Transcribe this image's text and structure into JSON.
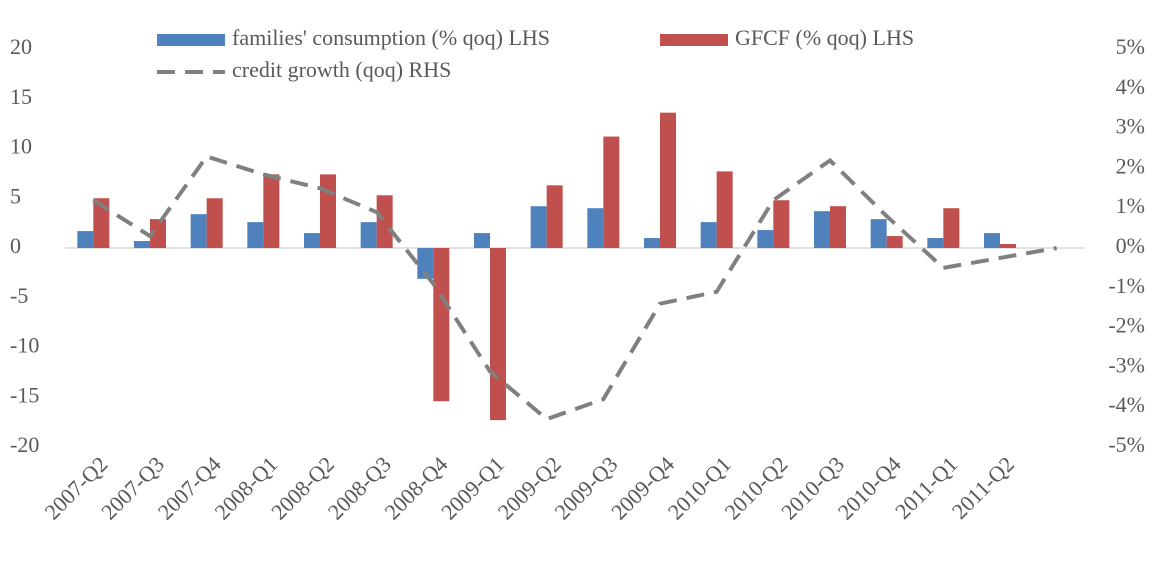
{
  "chart_data": {
    "type": "bar-line",
    "categories": [
      "2007-Q2",
      "2007-Q3",
      "2007-Q4",
      "2008-Q1",
      "2008-Q2",
      "2008-Q3",
      "2008-Q4",
      "2009-Q1",
      "2009-Q2",
      "2009-Q3",
      "2009-Q4",
      "2010-Q1",
      "2010-Q2",
      "2010-Q3",
      "2010-Q4",
      "2011-Q1",
      "2011-Q2",
      null
    ],
    "series": [
      {
        "name": "families' consumption (% qoq) LHS",
        "color": "#4f81bd",
        "kind": "bar",
        "values": [
          1.7,
          0.7,
          3.4,
          2.6,
          1.5,
          2.6,
          -3.1,
          1.5,
          4.2,
          4.0,
          1.0,
          2.6,
          1.8,
          3.7,
          2.9,
          1.0,
          1.5,
          null
        ]
      },
      {
        "name": "GFCF (% qoq) LHS",
        "color": "#c0504d",
        "kind": "bar",
        "values": [
          5.0,
          2.9,
          5.0,
          7.4,
          7.4,
          5.3,
          -15.4,
          -17.3,
          6.3,
          11.2,
          13.6,
          7.7,
          4.8,
          4.2,
          1.2,
          4.0,
          0.4,
          null
        ]
      },
      {
        "name": "credit growth (qoq) RHS",
        "color": "#808080",
        "kind": "line",
        "axis": "y2",
        "values": [
          1.2,
          0.3,
          2.3,
          1.85,
          1.5,
          0.9,
          -0.9,
          -3.1,
          -4.3,
          -3.8,
          -1.4,
          -1.1,
          1.2,
          2.2,
          0.8,
          -0.5,
          -0.25,
          0
        ]
      }
    ],
    "ylim": [
      -20,
      20
    ],
    "yticks": [
      -20,
      -15,
      -10,
      -5,
      0,
      5,
      10,
      15,
      20
    ],
    "y2lim": [
      -5,
      5
    ],
    "y2ticks": [
      {
        "value": -5,
        "label": "-5%"
      },
      {
        "value": -4,
        "label": "-4%"
      },
      {
        "value": -3,
        "label": "-3%"
      },
      {
        "value": -2,
        "label": "-2%"
      },
      {
        "value": -1,
        "label": "-1%"
      },
      {
        "value": 0,
        "label": "0%"
      },
      {
        "value": 1,
        "label": "1%"
      },
      {
        "value": 2,
        "label": "2%"
      },
      {
        "value": 3,
        "label": "3%"
      },
      {
        "value": 4,
        "label": "4%"
      },
      {
        "value": 5,
        "label": "5%"
      }
    ],
    "grid": false
  }
}
